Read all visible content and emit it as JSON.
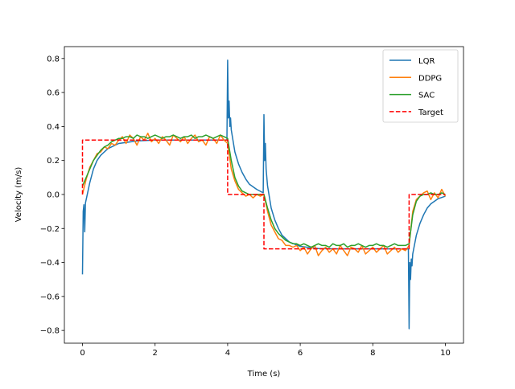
{
  "chart_data": {
    "type": "line",
    "title": "",
    "xlabel": "Time (s)",
    "ylabel": "Velocity (m/s)",
    "xlim": [
      -0.5,
      10.5
    ],
    "ylim": [
      -0.875,
      0.87
    ],
    "xticks": [
      0,
      2,
      4,
      6,
      8,
      10
    ],
    "xtick_labels": [
      "0",
      "2",
      "4",
      "6",
      "8",
      "10"
    ],
    "yticks": [
      -0.8,
      -0.6,
      -0.4,
      -0.2,
      0.0,
      0.2,
      0.4,
      0.6,
      0.8
    ],
    "ytick_labels": [
      "−0.8",
      "−0.6",
      "−0.4",
      "−0.2",
      "0.0",
      "0.2",
      "0.4",
      "0.6",
      "0.8"
    ],
    "grid": false,
    "legend_position": "top-right",
    "series": [
      {
        "name": "LQR",
        "color": "#1f77b4",
        "style": "solid",
        "x": [
          0,
          0.02,
          0.04,
          0.06,
          0.08,
          0.1,
          0.2,
          0.3,
          0.4,
          0.5,
          0.7,
          1.0,
          1.5,
          2,
          3,
          3.98,
          4.0,
          4.02,
          4.04,
          4.06,
          4.08,
          4.1,
          4.2,
          4.3,
          4.4,
          4.5,
          4.6,
          4.8,
          4.98,
          5.0,
          5.02,
          5.04,
          5.06,
          5.1,
          5.2,
          5.3,
          5.4,
          5.5,
          5.7,
          6.0,
          6.5,
          7,
          8.98,
          9.0,
          9.02,
          9.04,
          9.06,
          9.08,
          9.1,
          9.2,
          9.3,
          9.4,
          9.5,
          9.6,
          9.8,
          10
        ],
        "y": [
          -0.47,
          -0.1,
          -0.06,
          -0.22,
          -0.05,
          -0.03,
          0.07,
          0.15,
          0.2,
          0.23,
          0.27,
          0.3,
          0.315,
          0.32,
          0.32,
          0.32,
          0.79,
          0.45,
          0.55,
          0.4,
          0.45,
          0.38,
          0.25,
          0.18,
          0.13,
          0.09,
          0.06,
          0.03,
          0.01,
          0.47,
          0.2,
          0.3,
          0.15,
          0.05,
          -0.08,
          -0.15,
          -0.2,
          -0.24,
          -0.28,
          -0.305,
          -0.318,
          -0.32,
          -0.32,
          -0.79,
          -0.4,
          -0.5,
          -0.38,
          -0.42,
          -0.35,
          -0.24,
          -0.17,
          -0.12,
          -0.08,
          -0.055,
          -0.025,
          -0.01
        ]
      },
      {
        "name": "DDPG",
        "color": "#ff7f0e",
        "style": "solid",
        "x_start": 0,
        "x_step": 0.1,
        "y": [
          0.0,
          0.09,
          0.16,
          0.2,
          0.24,
          0.25,
          0.28,
          0.27,
          0.3,
          0.29,
          0.32,
          0.34,
          0.3,
          0.35,
          0.33,
          0.29,
          0.34,
          0.32,
          0.36,
          0.31,
          0.33,
          0.3,
          0.34,
          0.32,
          0.29,
          0.35,
          0.33,
          0.31,
          0.34,
          0.3,
          0.33,
          0.35,
          0.31,
          0.32,
          0.29,
          0.34,
          0.33,
          0.3,
          0.35,
          0.32,
          0.3,
          0.15,
          0.08,
          0.03,
          0.01,
          -0.01,
          0.0,
          -0.02,
          0.0,
          -0.01,
          0.0,
          -0.1,
          -0.18,
          -0.22,
          -0.26,
          -0.27,
          -0.3,
          -0.3,
          -0.31,
          -0.3,
          -0.33,
          -0.31,
          -0.35,
          -0.32,
          -0.3,
          -0.36,
          -0.33,
          -0.31,
          -0.34,
          -0.32,
          -0.35,
          -0.3,
          -0.33,
          -0.36,
          -0.31,
          -0.32,
          -0.34,
          -0.3,
          -0.35,
          -0.33,
          -0.31,
          -0.34,
          -0.32,
          -0.3,
          -0.35,
          -0.33,
          -0.31,
          -0.34,
          -0.32,
          -0.33,
          -0.3,
          -0.1,
          -0.03,
          -0.01,
          0.01,
          0.02,
          -0.03,
          0.01,
          -0.02,
          0.03,
          -0.01
        ]
      },
      {
        "name": "SAC",
        "color": "#2ca02c",
        "style": "solid",
        "x_start": 0,
        "x_step": 0.1,
        "y": [
          0.05,
          0.1,
          0.15,
          0.2,
          0.23,
          0.26,
          0.28,
          0.29,
          0.31,
          0.32,
          0.33,
          0.33,
          0.34,
          0.34,
          0.33,
          0.35,
          0.34,
          0.34,
          0.33,
          0.34,
          0.35,
          0.34,
          0.33,
          0.34,
          0.34,
          0.35,
          0.34,
          0.33,
          0.34,
          0.34,
          0.35,
          0.33,
          0.34,
          0.34,
          0.35,
          0.34,
          0.33,
          0.34,
          0.35,
          0.34,
          0.33,
          0.2,
          0.1,
          0.05,
          0.02,
          0.01,
          0.0,
          0.0,
          0.0,
          0.0,
          0.0,
          -0.08,
          -0.15,
          -0.2,
          -0.23,
          -0.25,
          -0.27,
          -0.28,
          -0.29,
          -0.29,
          -0.3,
          -0.29,
          -0.3,
          -0.31,
          -0.3,
          -0.29,
          -0.3,
          -0.3,
          -0.31,
          -0.29,
          -0.3,
          -0.3,
          -0.29,
          -0.31,
          -0.3,
          -0.3,
          -0.29,
          -0.3,
          -0.31,
          -0.3,
          -0.3,
          -0.29,
          -0.3,
          -0.3,
          -0.31,
          -0.3,
          -0.29,
          -0.3,
          -0.3,
          -0.3,
          -0.29,
          -0.12,
          -0.04,
          -0.01,
          0.0,
          0.0,
          0.01,
          0.0,
          0.0,
          0.01,
          0.0
        ]
      },
      {
        "name": "Target",
        "color": "#ff0000",
        "style": "dashed",
        "x": [
          0,
          0,
          4,
          4,
          5,
          5,
          9,
          9,
          10
        ],
        "y": [
          0,
          0.32,
          0.32,
          0,
          0,
          -0.32,
          -0.32,
          0,
          0
        ]
      }
    ]
  }
}
